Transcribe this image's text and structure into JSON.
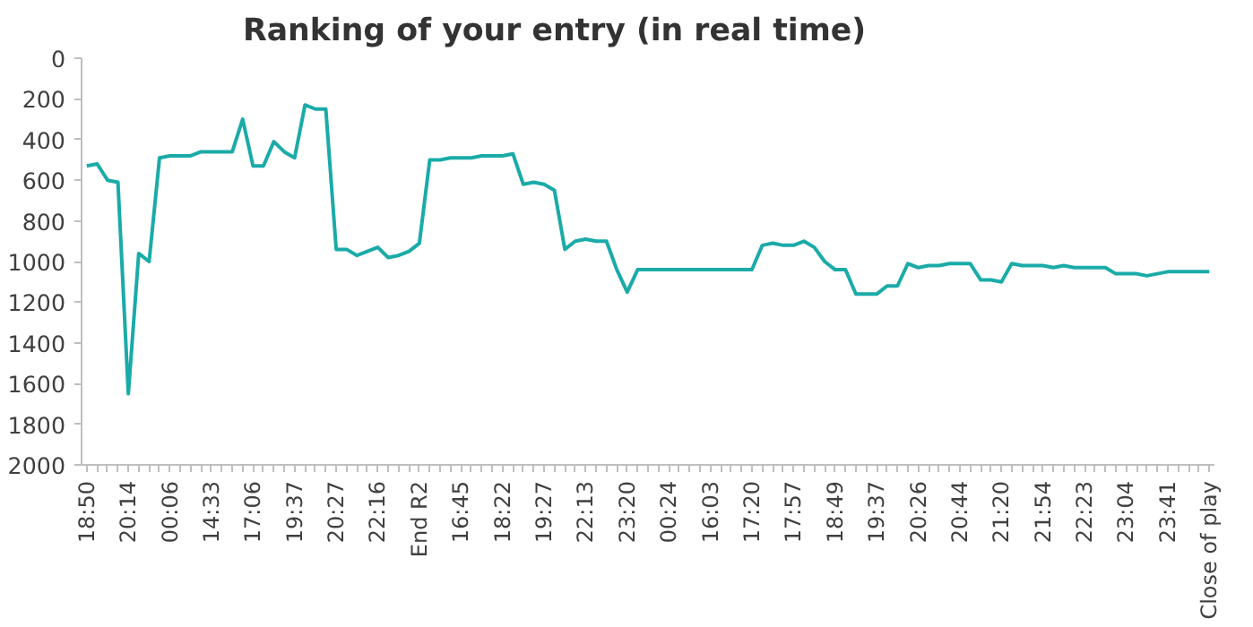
{
  "chart_data": {
    "type": "line",
    "title": "Ranking of your entry (in real time)",
    "categories": [
      "18:50",
      null,
      null,
      null,
      "20:14",
      null,
      null,
      null,
      "00:06",
      null,
      null,
      null,
      "14:33",
      null,
      null,
      null,
      "17:06",
      null,
      null,
      null,
      "19:37",
      null,
      null,
      null,
      "20:27",
      null,
      null,
      null,
      "22:16",
      null,
      null,
      null,
      "End R2",
      null,
      null,
      null,
      "16:45",
      null,
      null,
      null,
      "18:22",
      null,
      null,
      null,
      "19:27",
      null,
      null,
      null,
      "22:13",
      null,
      null,
      null,
      "23:20",
      null,
      null,
      null,
      "00:24",
      null,
      null,
      null,
      "16:03",
      null,
      null,
      null,
      "17:20",
      null,
      null,
      null,
      "17:57",
      null,
      null,
      null,
      "18:49",
      null,
      null,
      null,
      "19:37",
      null,
      null,
      null,
      "20:26",
      null,
      null,
      null,
      "20:44",
      null,
      null,
      null,
      "21:20",
      null,
      null,
      null,
      "21:54",
      null,
      null,
      null,
      "22:23",
      null,
      null,
      null,
      "23:04",
      null,
      null,
      null,
      "23:41",
      null,
      null,
      null,
      "Close of play"
    ],
    "series": [
      {
        "color": "#1aaba8",
        "values": [
          530,
          520,
          600,
          610,
          1650,
          960,
          1000,
          490,
          480,
          480,
          480,
          460,
          460,
          460,
          460,
          300,
          530,
          530,
          410,
          460,
          490,
          230,
          250,
          250,
          940,
          940,
          970,
          950,
          930,
          980,
          970,
          950,
          910,
          500,
          500,
          490,
          490,
          490,
          480,
          480,
          480,
          470,
          620,
          610,
          620,
          650,
          940,
          900,
          890,
          900,
          900,
          1040,
          1150,
          1040,
          1040,
          1040,
          1040,
          1040,
          1040,
          1040,
          1040,
          1040,
          1040,
          1040,
          1040,
          920,
          910,
          920,
          920,
          900,
          930,
          1000,
          1040,
          1040,
          1160,
          1160,
          1160,
          1120,
          1120,
          1010,
          1030,
          1020,
          1020,
          1010,
          1010,
          1010,
          1090,
          1090,
          1100,
          1010,
          1020,
          1020,
          1020,
          1030,
          1020,
          1030,
          1030,
          1030,
          1030,
          1060,
          1060,
          1060,
          1070,
          1060,
          1050,
          1050,
          1050,
          1050,
          1050
        ]
      }
    ],
    "ylim": [
      2000,
      0
    ],
    "yticks": [
      0,
      200,
      400,
      600,
      800,
      1000,
      1200,
      1400,
      1600,
      1800,
      2000
    ],
    "grid": false,
    "marker": "none",
    "line_style": "solid"
  }
}
